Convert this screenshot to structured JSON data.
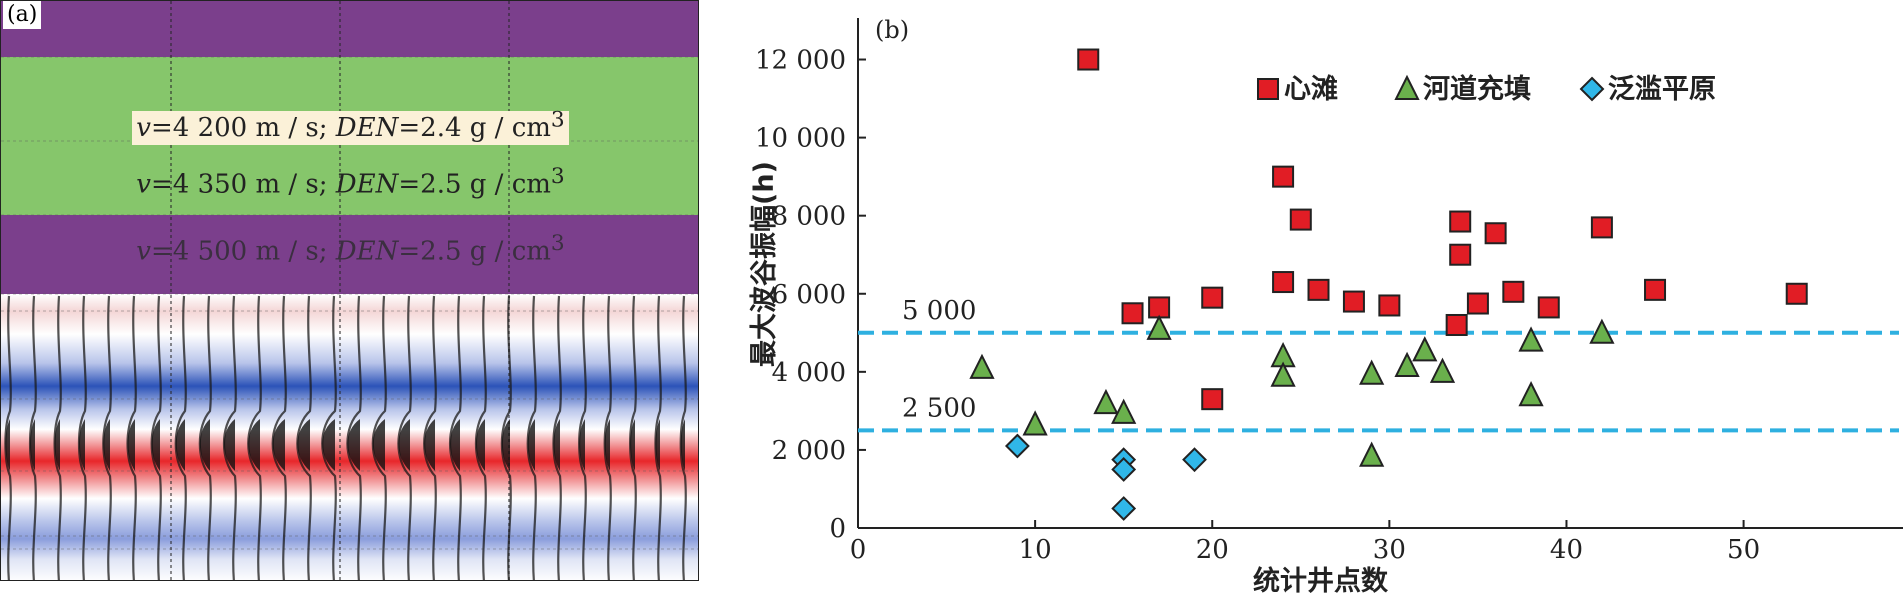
{
  "panel_a": {
    "label": "(a)",
    "layers": [
      {
        "v_label": "v",
        "v_value": "=4 200 m / s; ",
        "den_label": "DEN",
        "den_value": "=2.4 g / cm",
        "sup": "3"
      },
      {
        "v_label": "v",
        "v_value": "=4 350 m / s; ",
        "den_label": "DEN",
        "den_value": "=2.5 g / cm",
        "sup": "3"
      },
      {
        "v_label": "v",
        "v_value": "=4 500 m / s; ",
        "den_label": "DEN",
        "den_value": "=2.5 g / cm",
        "sup": "3"
      }
    ],
    "colors": {
      "layer_outer": "#7b3f8c",
      "layer_middle": "#86c66b",
      "red": "#e8262a",
      "blue": "#2c53b8",
      "black": "#111111"
    }
  },
  "chart_data": {
    "type": "scatter",
    "panel_label": "(b)",
    "xlabel": "统计井点数",
    "ylabel": "最大波谷振幅(h)",
    "xlim": [
      0,
      59
    ],
    "ylim": [
      0,
      12500
    ],
    "x_ticks": [
      0,
      10,
      20,
      30,
      40,
      50
    ],
    "x_tick_labels": [
      "0",
      "10",
      "20",
      "30",
      "40",
      "50"
    ],
    "y_ticks": [
      0,
      2000,
      4000,
      6000,
      8000,
      10000,
      12000
    ],
    "y_tick_labels": [
      "0",
      "2 000",
      "4 000",
      "6 000",
      "8 000",
      "10 000",
      "12 000"
    ],
    "legend_position": "top-right",
    "reference_lines": [
      {
        "y": 5000,
        "label": "5 000",
        "color": "#2eb0e0"
      },
      {
        "y": 2500,
        "label": "2 500",
        "color": "#2eb0e0"
      }
    ],
    "series": [
      {
        "name": "心滩",
        "marker": "square",
        "color": "#e11d25",
        "points": [
          {
            "x": 13,
            "y": 12000
          },
          {
            "x": 15.5,
            "y": 5500
          },
          {
            "x": 17,
            "y": 5650
          },
          {
            "x": 20,
            "y": 5900
          },
          {
            "x": 20,
            "y": 3300
          },
          {
            "x": 24,
            "y": 9000
          },
          {
            "x": 24,
            "y": 6300
          },
          {
            "x": 25,
            "y": 7900
          },
          {
            "x": 26,
            "y": 6100
          },
          {
            "x": 28,
            "y": 5800
          },
          {
            "x": 30,
            "y": 5700
          },
          {
            "x": 34,
            "y": 7850
          },
          {
            "x": 34,
            "y": 7000
          },
          {
            "x": 33.8,
            "y": 5200
          },
          {
            "x": 35,
            "y": 5750
          },
          {
            "x": 36,
            "y": 7550
          },
          {
            "x": 37,
            "y": 6050
          },
          {
            "x": 39,
            "y": 5650
          },
          {
            "x": 42,
            "y": 7700
          },
          {
            "x": 45,
            "y": 6100
          },
          {
            "x": 53,
            "y": 6000
          }
        ]
      },
      {
        "name": "河道充填",
        "marker": "triangle",
        "color": "#6ab04c",
        "points": [
          {
            "x": 7,
            "y": 4100
          },
          {
            "x": 10,
            "y": 2650
          },
          {
            "x": 14,
            "y": 3200
          },
          {
            "x": 15,
            "y": 2950
          },
          {
            "x": 17,
            "y": 5100
          },
          {
            "x": 24,
            "y": 4400
          },
          {
            "x": 24,
            "y": 3900
          },
          {
            "x": 29,
            "y": 3950
          },
          {
            "x": 29,
            "y": 1850
          },
          {
            "x": 31,
            "y": 4150
          },
          {
            "x": 32,
            "y": 4550
          },
          {
            "x": 33,
            "y": 4000
          },
          {
            "x": 38,
            "y": 4800
          },
          {
            "x": 38,
            "y": 3400
          },
          {
            "x": 42,
            "y": 5000
          }
        ]
      },
      {
        "name": "泛滥平原",
        "marker": "diamond",
        "color": "#30b7e8",
        "points": [
          {
            "x": 9,
            "y": 2100
          },
          {
            "x": 15,
            "y": 1750
          },
          {
            "x": 15,
            "y": 1500
          },
          {
            "x": 19,
            "y": 1750
          },
          {
            "x": 15,
            "y": 500
          }
        ]
      }
    ]
  }
}
